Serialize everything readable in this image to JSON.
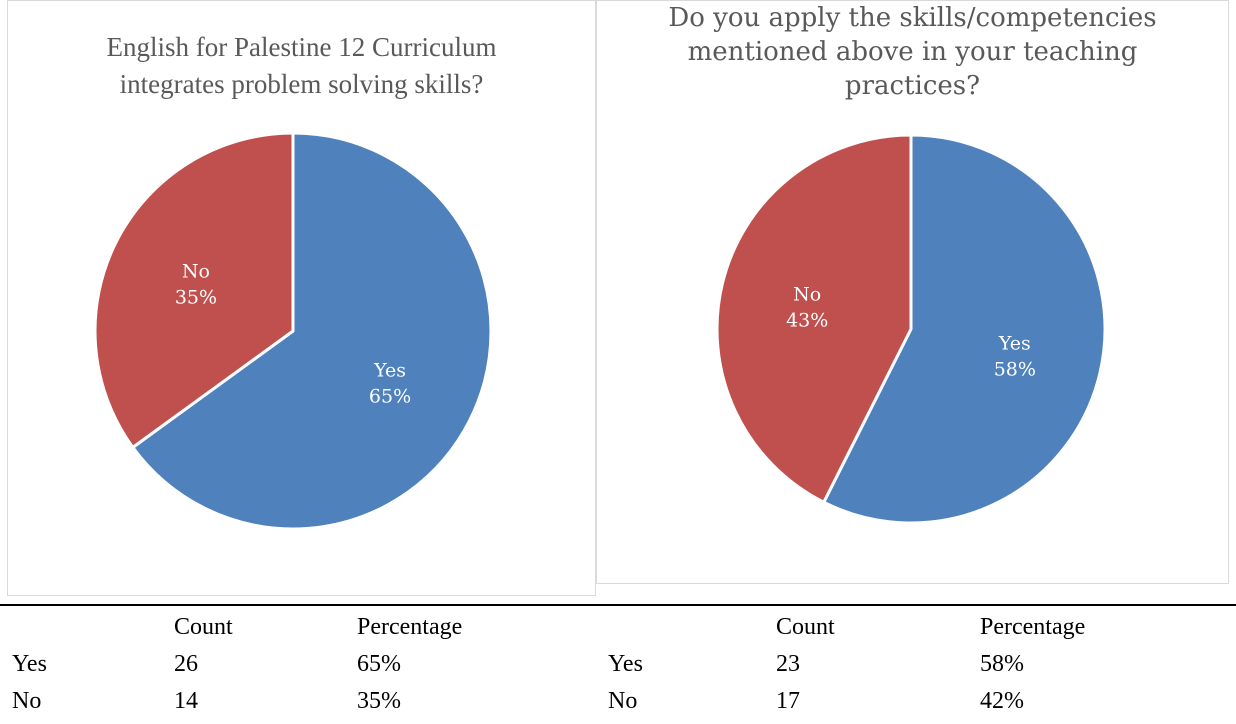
{
  "chart_data": [
    {
      "type": "pie",
      "title": "English for Palestine 12 Curriculum\nintegrates problem solving skills?",
      "categories": [
        "Yes",
        "No"
      ],
      "values": [
        65,
        35
      ],
      "labels": [
        "65%",
        "35%"
      ],
      "colors": [
        "#4f81bd",
        "#c0504d"
      ],
      "legend": "none"
    },
    {
      "type": "pie",
      "title": "Do you apply the skills/competencies\nmentioned above in your teaching\npractices?",
      "categories": [
        "Yes",
        "No"
      ],
      "values": [
        58,
        43
      ],
      "labels": [
        "58%",
        "43%"
      ],
      "colors": [
        "#4f81bd",
        "#c0504d"
      ],
      "legend": "none"
    }
  ],
  "tables": [
    {
      "headers": [
        "",
        "Count",
        "Percentage"
      ],
      "rows": [
        [
          "Yes",
          "26",
          "65%"
        ],
        [
          "No",
          "14",
          "35%"
        ]
      ]
    },
    {
      "headers": [
        "",
        "Count",
        "Percentage"
      ],
      "rows": [
        [
          "Yes",
          "23",
          "58%"
        ],
        [
          "No",
          "17",
          "42%"
        ]
      ]
    }
  ]
}
